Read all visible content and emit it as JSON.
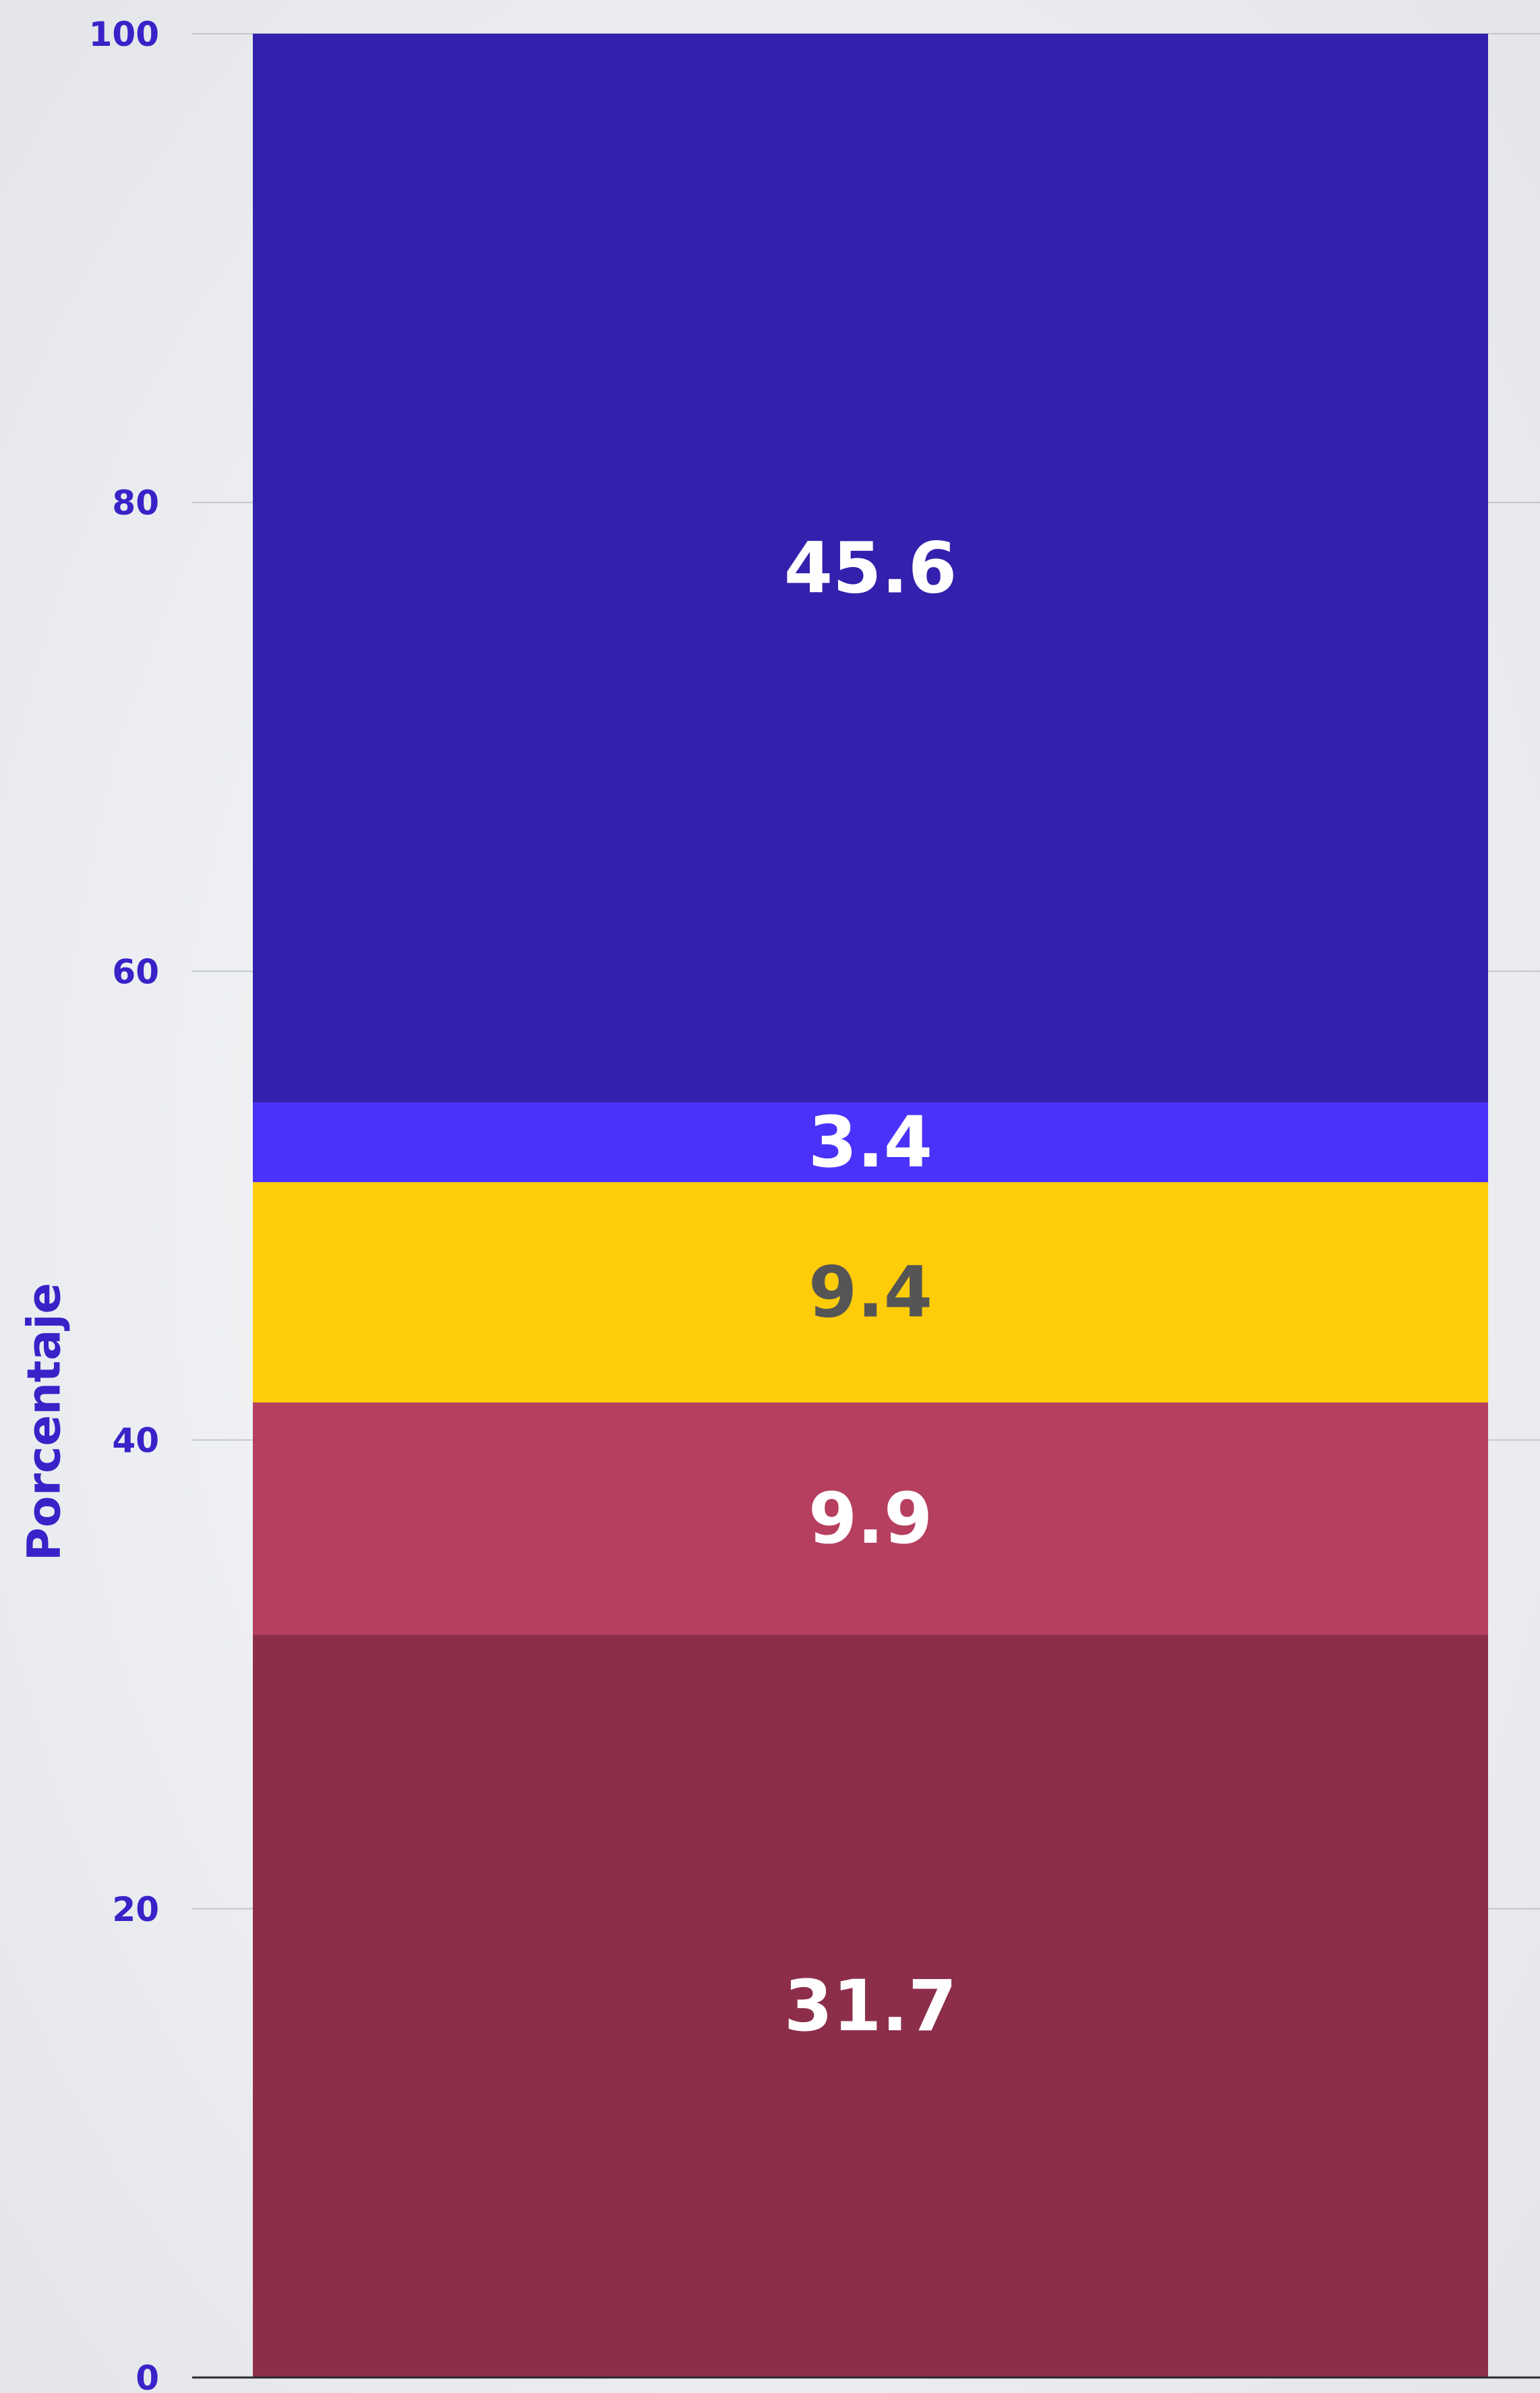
{
  "chart_data": {
    "type": "bar",
    "stacked": true,
    "categories": [
      ""
    ],
    "series": [
      {
        "values": [
          31.7
        ],
        "color": "#8c2e4a",
        "label_color": "#ffffff"
      },
      {
        "values": [
          9.9
        ],
        "color": "#b63e5e",
        "label_color": "#ffffff"
      },
      {
        "values": [
          9.4
        ],
        "color": "#ffcc0a",
        "label_color": "#555555"
      },
      {
        "values": [
          3.4
        ],
        "color": "#4a32fa",
        "label_color": "#ffffff"
      },
      {
        "values": [
          45.6
        ],
        "color": "#3320ad",
        "label_color": "#ffffff"
      }
    ],
    "data_labels": [
      "31.7",
      "9.9",
      "9.4",
      "3.4",
      "45.6"
    ],
    "xlabel": "",
    "ylabel": "Porcentaje",
    "ylim": [
      0,
      100
    ],
    "yticks": [
      0,
      20,
      40,
      60,
      80,
      100
    ],
    "ytick_labels": [
      "0",
      "20",
      "40",
      "60",
      "80",
      "100"
    ],
    "grid": true,
    "legend": "none",
    "colors": {
      "axis_text": "#3a22c8",
      "gridline": "#c4c6cc",
      "baseline": "#2a2a2a"
    }
  }
}
